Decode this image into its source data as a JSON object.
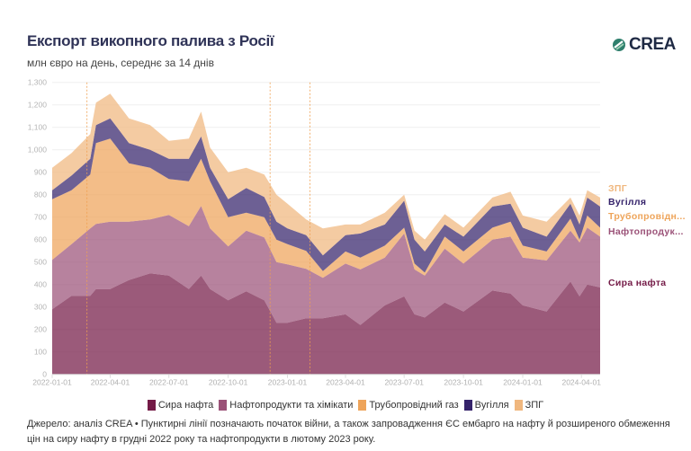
{
  "header": {
    "title": "Експорт викопного палива з Росії",
    "subtitle": "млн євро на день, середнє за 14 днів",
    "logo": "CREA"
  },
  "footer": {
    "note": "Джерело: аналіз CREA • Пунктирні лінії позначають початок війни, а також запровадження ЄС ембарго на нафту й розширеного обмеження цін на сиру нафту в грудні 2022 року та нафтопродукти в лютому 2023 року."
  },
  "chart_data": {
    "type": "area",
    "stacked": true,
    "title": "Експорт викопного палива з Росії",
    "subtitle": "млн євро на день, середнє за 14 днів",
    "ylim": [
      0,
      1300
    ],
    "yticks": [
      "0",
      "100",
      "200",
      "300",
      "400",
      "500",
      "600",
      "700",
      "800",
      "900",
      "1,000",
      "1,100",
      "1,200",
      "1,300"
    ],
    "xticks": [
      "2022-01-01",
      "2022-04-01",
      "2022-07-01",
      "2022-10-01",
      "2023-01-01",
      "2023-04-01",
      "2023-07-01",
      "2023-10-01",
      "2024-01-01",
      "2024-04-01"
    ],
    "xlim": [
      "2022-01-01",
      "2024-04-30"
    ],
    "grid": true,
    "legend_placement": "bottom",
    "event_lines": [
      "2022-02-24",
      "2022-12-05",
      "2023-02-05"
    ],
    "x": [
      "2022-01-01",
      "2022-01-31",
      "2022-03-01",
      "2022-03-10",
      "2022-04-01",
      "2022-04-30",
      "2022-06-02",
      "2022-07-01",
      "2022-08-01",
      "2022-08-20",
      "2022-09-03",
      "2022-10-01",
      "2022-10-29",
      "2022-11-26",
      "2022-12-15",
      "2023-01-01",
      "2023-01-30",
      "2023-02-25",
      "2023-04-01",
      "2023-04-24",
      "2023-06-01",
      "2023-07-01",
      "2023-07-17",
      "2023-08-02",
      "2023-09-02",
      "2023-10-01",
      "2023-11-15",
      "2023-12-13",
      "2024-01-01",
      "2024-02-07",
      "2024-03-15",
      "2024-03-29",
      "2024-04-10",
      "2024-04-30"
    ],
    "series": [
      {
        "name": "Сира нафта",
        "label": "Сира нафта",
        "color": "#741b47",
        "label_color": "#741b47",
        "values": [
          290,
          350,
          350,
          380,
          380,
          420,
          450,
          440,
          380,
          440,
          380,
          330,
          370,
          330,
          230,
          230,
          250,
          250,
          267,
          220,
          307,
          347,
          267,
          253,
          320,
          280,
          373,
          360,
          307,
          280,
          413,
          347,
          400,
          387
        ]
      },
      {
        "name": "Нафтопродукти та хімікати",
        "label": "Нафтопродук...",
        "color": "#9b5278",
        "label_color": "#9b5278",
        "values": [
          220,
          230,
          300,
          290,
          300,
          260,
          240,
          270,
          280,
          310,
          270,
          240,
          270,
          280,
          270,
          260,
          220,
          180,
          226,
          247,
          213,
          280,
          200,
          187,
          240,
          213,
          227,
          253,
          213,
          227,
          227,
          240,
          253,
          226
        ]
      },
      {
        "name": "Трубопровідний газ",
        "label": "Трубопровідн...",
        "color": "#eea45a",
        "label_color": "#eea45a",
        "values": [
          270,
          240,
          240,
          360,
          370,
          260,
          230,
          160,
          200,
          210,
          210,
          130,
          80,
          90,
          100,
          90,
          80,
          30,
          54,
          53,
          53,
          26,
          26,
          13,
          53,
          54,
          53,
          67,
          53,
          40,
          53,
          13,
          54,
          40
        ]
      },
      {
        "name": "Вугілля",
        "label": "Вугілля",
        "color": "#35236b",
        "label_color": "#35236b",
        "values": [
          40,
          65,
          70,
          80,
          90,
          90,
          80,
          90,
          100,
          100,
          60,
          80,
          110,
          90,
          80,
          70,
          70,
          70,
          73,
          107,
          94,
          120,
          107,
          94,
          54,
          66,
          94,
          80,
          80,
          66,
          67,
          67,
          80,
          94
        ]
      },
      {
        "name": "ЗПГ",
        "label": "ЗПГ",
        "color": "#f0b77e",
        "label_color": "#f0b77e",
        "values": [
          100,
          100,
          110,
          100,
          110,
          110,
          110,
          80,
          90,
          110,
          90,
          120,
          90,
          100,
          120,
          110,
          70,
          120,
          47,
          40,
          53,
          27,
          40,
          53,
          46,
          40,
          40,
          53,
          54,
          67,
          27,
          40,
          33,
          40
        ]
      }
    ]
  }
}
